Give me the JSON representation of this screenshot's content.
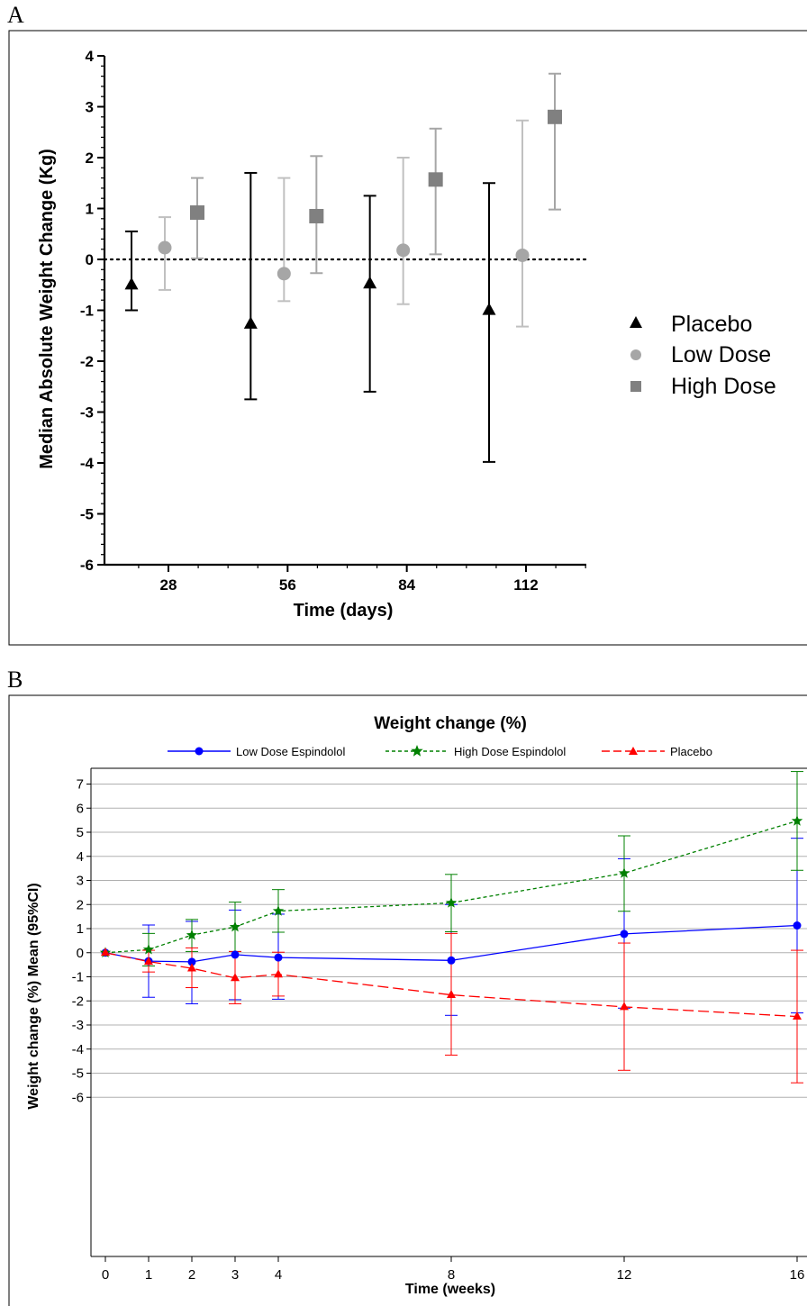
{
  "chart_data": [
    {
      "panel_label": "A",
      "type": "scatter",
      "subtype": "median with error bars",
      "xlabel": "Time (days)",
      "ylabel": "Median Absolute Weight Change (Kg)",
      "x_ticks": [
        "28",
        "56",
        "84",
        "112"
      ],
      "ylim": [
        -6,
        4
      ],
      "y_ticks": [
        "4",
        "3",
        "2",
        "1",
        "0",
        "-1",
        "-2",
        "-3",
        "-4",
        "-5",
        "-6"
      ],
      "reference_line": {
        "y": 0,
        "style": "dotted"
      },
      "legend_position": "right",
      "series": [
        {
          "name": "Placebo",
          "marker": "triangle",
          "color": "#000000",
          "points": [
            {
              "x": 28,
              "y": -0.5,
              "low": -1.0,
              "high": 0.55
            },
            {
              "x": 56,
              "y": -1.27,
              "low": -2.75,
              "high": 1.7
            },
            {
              "x": 84,
              "y": -0.48,
              "low": -2.6,
              "high": 1.25
            },
            {
              "x": 112,
              "y": -1.0,
              "low": -3.98,
              "high": 1.5
            }
          ]
        },
        {
          "name": "Low Dose",
          "marker": "circle",
          "color": "#a6a6a6",
          "points": [
            {
              "x": 28,
              "y": 0.23,
              "low": -0.6,
              "high": 0.83
            },
            {
              "x": 56,
              "y": -0.28,
              "low": -0.82,
              "high": 1.6
            },
            {
              "x": 84,
              "y": 0.18,
              "low": -0.88,
              "high": 2.0
            },
            {
              "x": 112,
              "y": 0.08,
              "low": -1.32,
              "high": 2.73
            }
          ]
        },
        {
          "name": "High Dose",
          "marker": "square",
          "color": "#808080",
          "points": [
            {
              "x": 28,
              "y": 0.92,
              "low": 0.02,
              "high": 1.6
            },
            {
              "x": 56,
              "y": 0.85,
              "low": -0.27,
              "high": 2.03
            },
            {
              "x": 84,
              "y": 1.57,
              "low": 0.1,
              "high": 2.57
            },
            {
              "x": 112,
              "y": 2.8,
              "low": 0.98,
              "high": 3.65
            }
          ]
        }
      ]
    },
    {
      "panel_label": "B",
      "type": "line",
      "subtype": "mean with 95% CI error bars",
      "title": "Weight change (%)",
      "xlabel": "Time (weeks)",
      "ylabel": "Weight change (%) Mean (95%CI)",
      "x_ticks": [
        "0",
        "1",
        "2",
        "3",
        "4",
        "8",
        "12",
        "16"
      ],
      "ylim": [
        -6,
        7.5
      ],
      "y_ticks": [
        "7",
        "6",
        "5",
        "4",
        "3",
        "2",
        "1",
        "0",
        "-1",
        "-2",
        "-3",
        "-4",
        "-5",
        "-6"
      ],
      "grid": "horizontal",
      "legend_position": "top",
      "series": [
        {
          "name": "Low Dose Espindolol",
          "color": "#0000ff",
          "marker": "circle",
          "line": "solid",
          "x": [
            0,
            1,
            2,
            3,
            4,
            8,
            12,
            16
          ],
          "y": [
            0,
            -0.35,
            -0.38,
            -0.08,
            -0.2,
            -0.32,
            0.78,
            1.13
          ],
          "low": [
            0,
            -1.85,
            -2.12,
            -1.95,
            -1.93,
            -2.6,
            -2.3,
            -2.5
          ],
          "high": [
            0,
            1.15,
            1.3,
            1.77,
            1.6,
            2.0,
            3.9,
            4.75
          ]
        },
        {
          "name": "High Dose Espindolol",
          "color": "#008000",
          "marker": "star",
          "line": "dashed",
          "x": [
            0,
            1,
            2,
            3,
            4,
            8,
            12,
            16
          ],
          "y": [
            0,
            0.13,
            0.73,
            1.07,
            1.73,
            2.07,
            3.3,
            5.47
          ],
          "low": [
            0,
            -0.55,
            0.05,
            0.05,
            0.85,
            0.87,
            1.72,
            3.42
          ],
          "high": [
            0,
            0.8,
            1.38,
            2.1,
            2.62,
            3.25,
            4.85,
            7.52
          ]
        },
        {
          "name": "Placebo",
          "color": "#ff0000",
          "marker": "triangle",
          "line": "longdash",
          "x": [
            0,
            1,
            2,
            3,
            4,
            8,
            12,
            16
          ],
          "y": [
            0,
            -0.37,
            -0.65,
            -1.05,
            -0.9,
            -1.75,
            -2.25,
            -2.65
          ],
          "low": [
            0,
            -0.8,
            -1.45,
            -2.12,
            -1.8,
            -4.25,
            -4.88,
            -5.4
          ],
          "high": [
            0,
            0.1,
            0.2,
            0.05,
            0.02,
            0.8,
            0.4,
            0.1
          ]
        }
      ]
    }
  ]
}
